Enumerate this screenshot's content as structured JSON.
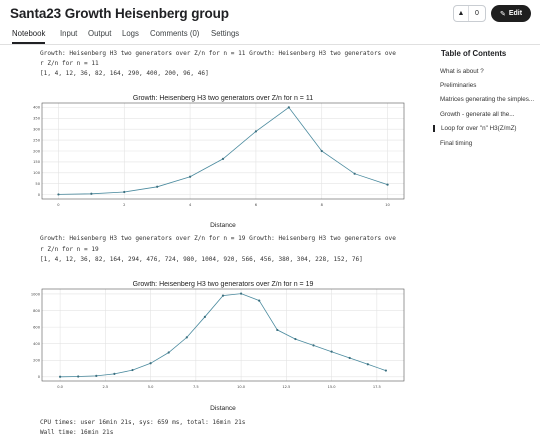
{
  "header": {
    "title": "Santa23 Growth Heisenberg group",
    "vote_count": "0",
    "edit_label": "Edit"
  },
  "tabs": [
    "Notebook",
    "Input",
    "Output",
    "Logs",
    "Comments (0)",
    "Settings"
  ],
  "cells": {
    "out1_line1": "Growth: Heisenberg H3 two generators over Z/n for n = 11 Growth: Heisenberg H3 two generators ove",
    "out1_line2": "r Z/n for n = 11",
    "out1_line3": "[1, 4, 12, 36, 82, 164, 290, 400, 200, 96, 46]",
    "out2_line1": "Growth: Heisenberg H3 two generators over Z/n for n = 19 Growth: Heisenberg H3 two generators ove",
    "out2_line2": "r Z/n for n = 19",
    "out2_line3": "[1, 4, 12, 36, 82, 164, 294, 476, 724, 980, 1004, 920, 566, 456, 380, 304, 228, 152, 76]",
    "cpu_times": "CPU times: user 16min 21s, sys: 659 ms, total: 16min 21s",
    "wall_time": "Wall time: 16min 21s"
  },
  "toc": {
    "title": "Table of Contents",
    "items": [
      "What is about ?",
      "Preliminaries",
      "Matrices generating the simples...",
      "Growth - generate all the...",
      "Loop for over \"n\" H3(Z/mZ)",
      "Final timing"
    ],
    "active_index": 4
  },
  "chart_data": [
    {
      "type": "line",
      "title": "Growth: Heisenberg H3 two generators over Z/n for n = 11",
      "xlabel": "Distance",
      "ylabel": "",
      "x": [
        0,
        1,
        2,
        3,
        4,
        5,
        6,
        7,
        8,
        9,
        10
      ],
      "values": [
        1,
        4,
        12,
        36,
        82,
        164,
        290,
        400,
        200,
        96,
        46
      ],
      "xticks": [
        0,
        2,
        4,
        6,
        8,
        10
      ],
      "yticks": [
        0,
        50,
        100,
        150,
        200,
        250,
        300,
        350,
        400
      ],
      "xlim": [
        -0.5,
        10.5
      ],
      "ylim": [
        -20,
        420
      ],
      "grid": true,
      "color": "#4a8a9e"
    },
    {
      "type": "line",
      "title": "Growth: Heisenberg H3 two generators over Z/n for n = 19",
      "xlabel": "Distance",
      "ylabel": "",
      "x": [
        0,
        1,
        2,
        3,
        4,
        5,
        6,
        7,
        8,
        9,
        10,
        11,
        12,
        13,
        14,
        15,
        16,
        17,
        18
      ],
      "values": [
        1,
        4,
        12,
        36,
        82,
        164,
        294,
        476,
        724,
        980,
        1004,
        920,
        566,
        456,
        380,
        304,
        228,
        152,
        76
      ],
      "xticks": [
        "0.0",
        "2.5",
        "5.0",
        "7.5",
        "10.0",
        "12.5",
        "15.0",
        "17.5"
      ],
      "xtick_values": [
        0,
        2.5,
        5,
        7.5,
        10,
        12.5,
        15,
        17.5
      ],
      "yticks": [
        0,
        200,
        400,
        600,
        800,
        1000
      ],
      "xlim": [
        -1,
        19
      ],
      "ylim": [
        -50,
        1060
      ],
      "grid": true,
      "color": "#4a8a9e"
    }
  ]
}
